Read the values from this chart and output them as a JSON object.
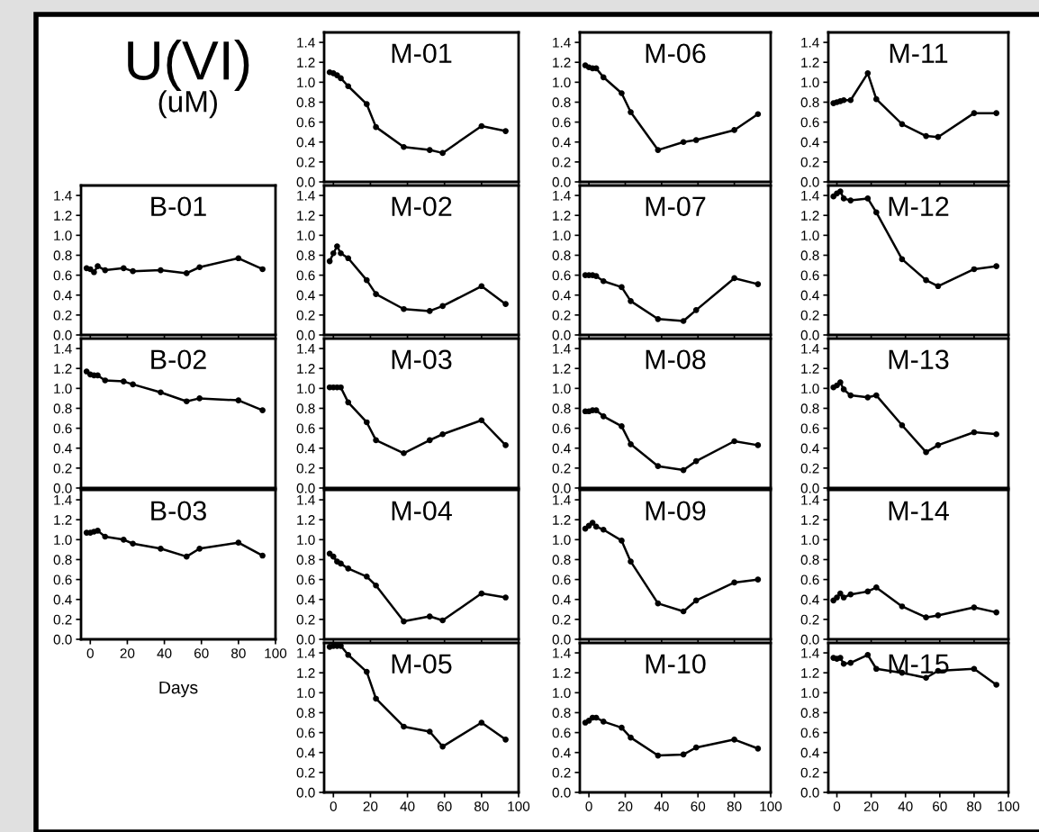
{
  "chart_data": [
    {
      "type": "other",
      "annotations": [
        "U(VI)",
        "(uM)"
      ]
    },
    {
      "type": "line",
      "title": "M-01",
      "x": [
        -2,
        0,
        2,
        4,
        8,
        18,
        23,
        38,
        52,
        59,
        80,
        93
      ],
      "values": [
        1.1,
        1.09,
        1.07,
        1.04,
        0.96,
        0.78,
        0.55,
        0.35,
        0.32,
        0.29,
        0.56,
        0.51
      ],
      "color": "#000000",
      "marker": "circle",
      "xlim": [
        -5,
        100
      ],
      "ylim": [
        0,
        1.5
      ],
      "xticks": [
        0,
        20,
        40,
        60,
        80,
        100
      ],
      "yticks": [
        {
          "value": 0,
          "label": "0.0"
        },
        {
          "value": 0.2,
          "label": "0.2"
        },
        {
          "value": 0.4,
          "label": "0.4"
        },
        {
          "value": 0.6,
          "label": "0.6"
        },
        {
          "value": 0.8,
          "label": "0.8"
        },
        {
          "value": 1,
          "label": "1.0"
        },
        {
          "value": 1.2,
          "label": "1.2"
        },
        {
          "value": 1.4,
          "label": "1.4"
        }
      ],
      "tick_labels": "y"
    },
    {
      "type": "line",
      "title": "M-06",
      "x": [
        -2,
        0,
        2,
        4,
        8,
        18,
        23,
        38,
        52,
        59,
        80,
        93
      ],
      "values": [
        1.17,
        1.15,
        1.14,
        1.14,
        1.05,
        0.89,
        0.7,
        0.32,
        0.4,
        0.42,
        0.52,
        0.68
      ],
      "color": "#000000",
      "marker": "circle",
      "xlim": [
        -5,
        100
      ],
      "ylim": [
        0,
        1.5
      ],
      "xticks": [
        0,
        20,
        40,
        60,
        80,
        100
      ],
      "yticks": [
        {
          "value": 0,
          "label": "0.0"
        },
        {
          "value": 0.2,
          "label": "0.2"
        },
        {
          "value": 0.4,
          "label": "0.4"
        },
        {
          "value": 0.6,
          "label": "0.6"
        },
        {
          "value": 0.8,
          "label": "0.8"
        },
        {
          "value": 1,
          "label": "1.0"
        },
        {
          "value": 1.2,
          "label": "1.2"
        },
        {
          "value": 1.4,
          "label": "1.4"
        }
      ],
      "tick_labels": "y"
    },
    {
      "type": "line",
      "title": "M-11",
      "x": [
        -2,
        0,
        2,
        4,
        8,
        18,
        23,
        38,
        52,
        59,
        80,
        93
      ],
      "values": [
        0.79,
        0.8,
        0.81,
        0.82,
        0.82,
        1.09,
        0.83,
        0.58,
        0.46,
        0.45,
        0.69,
        0.69
      ],
      "color": "#000000",
      "marker": "circle",
      "xlim": [
        -5,
        100
      ],
      "ylim": [
        0,
        1.5
      ],
      "xticks": [
        0,
        20,
        40,
        60,
        80,
        100
      ],
      "yticks": [
        {
          "value": 0,
          "label": "0.0"
        },
        {
          "value": 0.2,
          "label": "0.2"
        },
        {
          "value": 0.4,
          "label": "0.4"
        },
        {
          "value": 0.6,
          "label": "0.6"
        },
        {
          "value": 0.8,
          "label": "0.8"
        },
        {
          "value": 1,
          "label": "1.0"
        },
        {
          "value": 1.2,
          "label": "1.2"
        },
        {
          "value": 1.4,
          "label": "1.4"
        }
      ],
      "tick_labels": "y"
    },
    {
      "type": "line",
      "title": "B-01",
      "x": [
        -2,
        0,
        2,
        4,
        8,
        18,
        23,
        38,
        52,
        59,
        80,
        93
      ],
      "values": [
        0.67,
        0.66,
        0.63,
        0.69,
        0.65,
        0.67,
        0.64,
        0.65,
        0.62,
        0.68,
        0.77,
        0.66
      ],
      "color": "#000000",
      "marker": "circle",
      "xlim": [
        -5,
        100
      ],
      "ylim": [
        0,
        1.5
      ],
      "xticks": [
        0,
        20,
        40,
        60,
        80,
        100
      ],
      "yticks": [
        {
          "value": 0,
          "label": "0.0"
        },
        {
          "value": 0.2,
          "label": "0.2"
        },
        {
          "value": 0.4,
          "label": "0.4"
        },
        {
          "value": 0.6,
          "label": "0.6"
        },
        {
          "value": 0.8,
          "label": "0.8"
        },
        {
          "value": 1,
          "label": "1.0"
        },
        {
          "value": 1.2,
          "label": "1.2"
        },
        {
          "value": 1.4,
          "label": "1.4"
        }
      ],
      "tick_labels": "y"
    },
    {
      "type": "line",
      "title": "M-02",
      "x": [
        -2,
        0,
        2,
        4,
        8,
        18,
        23,
        38,
        52,
        59,
        80,
        93
      ],
      "values": [
        0.74,
        0.82,
        0.89,
        0.82,
        0.77,
        0.55,
        0.41,
        0.26,
        0.24,
        0.29,
        0.49,
        0.31
      ],
      "color": "#000000",
      "marker": "circle",
      "xlim": [
        -5,
        100
      ],
      "ylim": [
        0,
        1.5
      ],
      "xticks": [
        0,
        20,
        40,
        60,
        80,
        100
      ],
      "yticks": [
        {
          "value": 0,
          "label": "0.0"
        },
        {
          "value": 0.2,
          "label": "0.2"
        },
        {
          "value": 0.4,
          "label": "0.4"
        },
        {
          "value": 0.6,
          "label": "0.6"
        },
        {
          "value": 0.8,
          "label": "0.8"
        },
        {
          "value": 1,
          "label": "1.0"
        },
        {
          "value": 1.2,
          "label": "1.2"
        },
        {
          "value": 1.4,
          "label": "1.4"
        }
      ],
      "tick_labels": "y"
    },
    {
      "type": "line",
      "title": "M-07",
      "x": [
        -2,
        0,
        2,
        4,
        8,
        18,
        23,
        38,
        52,
        59,
        80,
        93
      ],
      "values": [
        0.6,
        0.6,
        0.6,
        0.59,
        0.54,
        0.48,
        0.34,
        0.16,
        0.14,
        0.25,
        0.57,
        0.51
      ],
      "color": "#000000",
      "marker": "circle",
      "xlim": [
        -5,
        100
      ],
      "ylim": [
        0,
        1.5
      ],
      "xticks": [
        0,
        20,
        40,
        60,
        80,
        100
      ],
      "yticks": [
        {
          "value": 0,
          "label": "0.0"
        },
        {
          "value": 0.2,
          "label": "0.2"
        },
        {
          "value": 0.4,
          "label": "0.4"
        },
        {
          "value": 0.6,
          "label": "0.6"
        },
        {
          "value": 0.8,
          "label": "0.8"
        },
        {
          "value": 1,
          "label": "1.0"
        },
        {
          "value": 1.2,
          "label": "1.2"
        },
        {
          "value": 1.4,
          "label": "1.4"
        }
      ],
      "tick_labels": "y"
    },
    {
      "type": "line",
      "title": "M-12",
      "x": [
        -2,
        0,
        2,
        4,
        8,
        18,
        23,
        38,
        52,
        59,
        80,
        93
      ],
      "values": [
        1.39,
        1.42,
        1.44,
        1.37,
        1.35,
        1.37,
        1.23,
        0.76,
        0.55,
        0.49,
        0.66,
        0.69
      ],
      "color": "#000000",
      "marker": "circle",
      "xlim": [
        -5,
        100
      ],
      "ylim": [
        0,
        1.5
      ],
      "xticks": [
        0,
        20,
        40,
        60,
        80,
        100
      ],
      "yticks": [
        {
          "value": 0,
          "label": "0.0"
        },
        {
          "value": 0.2,
          "label": "0.2"
        },
        {
          "value": 0.4,
          "label": "0.4"
        },
        {
          "value": 0.6,
          "label": "0.6"
        },
        {
          "value": 0.8,
          "label": "0.8"
        },
        {
          "value": 1,
          "label": "1.0"
        },
        {
          "value": 1.2,
          "label": "1.2"
        },
        {
          "value": 1.4,
          "label": "1.4"
        }
      ],
      "tick_labels": "y"
    },
    {
      "type": "line",
      "title": "B-02",
      "x": [
        -2,
        0,
        2,
        4,
        8,
        18,
        23,
        38,
        52,
        59,
        80,
        93
      ],
      "values": [
        1.17,
        1.14,
        1.13,
        1.13,
        1.08,
        1.07,
        1.04,
        0.96,
        0.87,
        0.9,
        0.88,
        0.78
      ],
      "color": "#000000",
      "marker": "circle",
      "xlim": [
        -5,
        100
      ],
      "ylim": [
        0,
        1.5
      ],
      "xticks": [
        0,
        20,
        40,
        60,
        80,
        100
      ],
      "yticks": [
        {
          "value": 0,
          "label": "0.0"
        },
        {
          "value": 0.2,
          "label": "0.2"
        },
        {
          "value": 0.4,
          "label": "0.4"
        },
        {
          "value": 0.6,
          "label": "0.6"
        },
        {
          "value": 0.8,
          "label": "0.8"
        },
        {
          "value": 1,
          "label": "1.0"
        },
        {
          "value": 1.2,
          "label": "1.2"
        },
        {
          "value": 1.4,
          "label": "1.4"
        }
      ],
      "tick_labels": "y"
    },
    {
      "type": "line",
      "title": "M-03",
      "x": [
        -2,
        0,
        2,
        4,
        8,
        18,
        23,
        38,
        52,
        59,
        80,
        93
      ],
      "values": [
        1.01,
        1.01,
        1.01,
        1.01,
        0.86,
        0.66,
        0.48,
        0.35,
        0.48,
        0.54,
        0.68,
        0.43
      ],
      "color": "#000000",
      "marker": "circle",
      "xlim": [
        -5,
        100
      ],
      "ylim": [
        0,
        1.5
      ],
      "xticks": [
        0,
        20,
        40,
        60,
        80,
        100
      ],
      "yticks": [
        {
          "value": 0,
          "label": "0.0"
        },
        {
          "value": 0.2,
          "label": "0.2"
        },
        {
          "value": 0.4,
          "label": "0.4"
        },
        {
          "value": 0.6,
          "label": "0.6"
        },
        {
          "value": 0.8,
          "label": "0.8"
        },
        {
          "value": 1,
          "label": "1.0"
        },
        {
          "value": 1.2,
          "label": "1.2"
        },
        {
          "value": 1.4,
          "label": "1.4"
        }
      ],
      "tick_labels": "y"
    },
    {
      "type": "line",
      "title": "M-08",
      "x": [
        -2,
        0,
        2,
        4,
        8,
        18,
        23,
        38,
        52,
        59,
        80,
        93
      ],
      "values": [
        0.77,
        0.77,
        0.78,
        0.78,
        0.72,
        0.62,
        0.44,
        0.22,
        0.18,
        0.27,
        0.47,
        0.43
      ],
      "color": "#000000",
      "marker": "circle",
      "xlim": [
        -5,
        100
      ],
      "ylim": [
        0,
        1.5
      ],
      "xticks": [
        0,
        20,
        40,
        60,
        80,
        100
      ],
      "yticks": [
        {
          "value": 0,
          "label": "0.0"
        },
        {
          "value": 0.2,
          "label": "0.2"
        },
        {
          "value": 0.4,
          "label": "0.4"
        },
        {
          "value": 0.6,
          "label": "0.6"
        },
        {
          "value": 0.8,
          "label": "0.8"
        },
        {
          "value": 1,
          "label": "1.0"
        },
        {
          "value": 1.2,
          "label": "1.2"
        },
        {
          "value": 1.4,
          "label": "1.4"
        }
      ],
      "tick_labels": "y"
    },
    {
      "type": "line",
      "title": "M-13",
      "x": [
        -2,
        0,
        2,
        4,
        8,
        18,
        23,
        38,
        52,
        59,
        80,
        93
      ],
      "values": [
        1.01,
        1.03,
        1.06,
        0.99,
        0.93,
        0.91,
        0.93,
        0.63,
        0.36,
        0.43,
        0.56,
        0.54
      ],
      "color": "#000000",
      "marker": "circle",
      "xlim": [
        -5,
        100
      ],
      "ylim": [
        0,
        1.5
      ],
      "xticks": [
        0,
        20,
        40,
        60,
        80,
        100
      ],
      "yticks": [
        {
          "value": 0,
          "label": "0.0"
        },
        {
          "value": 0.2,
          "label": "0.2"
        },
        {
          "value": 0.4,
          "label": "0.4"
        },
        {
          "value": 0.6,
          "label": "0.6"
        },
        {
          "value": 0.8,
          "label": "0.8"
        },
        {
          "value": 1,
          "label": "1.0"
        },
        {
          "value": 1.2,
          "label": "1.2"
        },
        {
          "value": 1.4,
          "label": "1.4"
        }
      ],
      "tick_labels": "y"
    },
    {
      "type": "line",
      "title": "B-03",
      "xlabel": "Days",
      "x": [
        -2,
        0,
        2,
        4,
        8,
        18,
        23,
        38,
        52,
        59,
        80,
        93
      ],
      "values": [
        1.07,
        1.07,
        1.08,
        1.09,
        1.03,
        1.0,
        0.96,
        0.91,
        0.83,
        0.91,
        0.97,
        0.84
      ],
      "color": "#000000",
      "marker": "circle",
      "xlim": [
        -5,
        100
      ],
      "ylim": [
        0,
        1.5
      ],
      "xticks": [
        0,
        20,
        40,
        60,
        80,
        100
      ],
      "yticks": [
        {
          "value": 0,
          "label": "0.0"
        },
        {
          "value": 0.2,
          "label": "0.2"
        },
        {
          "value": 0.4,
          "label": "0.4"
        },
        {
          "value": 0.6,
          "label": "0.6"
        },
        {
          "value": 0.8,
          "label": "0.8"
        },
        {
          "value": 1,
          "label": "1.0"
        },
        {
          "value": 1.2,
          "label": "1.2"
        },
        {
          "value": 1.4,
          "label": "1.4"
        }
      ]
    },
    {
      "type": "line",
      "title": "M-04",
      "x": [
        -2,
        0,
        2,
        4,
        8,
        18,
        23,
        38,
        52,
        59,
        80,
        93
      ],
      "values": [
        0.86,
        0.83,
        0.78,
        0.76,
        0.71,
        0.63,
        0.54,
        0.18,
        0.23,
        0.19,
        0.46,
        0.42
      ],
      "color": "#000000",
      "marker": "circle",
      "xlim": [
        -5,
        100
      ],
      "ylim": [
        0,
        1.5
      ],
      "xticks": [
        0,
        20,
        40,
        60,
        80,
        100
      ],
      "yticks": [
        {
          "value": 0,
          "label": "0.0"
        },
        {
          "value": 0.2,
          "label": "0.2"
        },
        {
          "value": 0.4,
          "label": "0.4"
        },
        {
          "value": 0.6,
          "label": "0.6"
        },
        {
          "value": 0.8,
          "label": "0.8"
        },
        {
          "value": 1,
          "label": "1.0"
        },
        {
          "value": 1.2,
          "label": "1.2"
        },
        {
          "value": 1.4,
          "label": "1.4"
        }
      ],
      "tick_labels": "y"
    },
    {
      "type": "line",
      "title": "M-09",
      "x": [
        -2,
        0,
        2,
        4,
        8,
        18,
        23,
        38,
        52,
        59,
        80,
        93
      ],
      "values": [
        1.11,
        1.14,
        1.17,
        1.13,
        1.1,
        0.99,
        0.78,
        0.36,
        0.28,
        0.39,
        0.57,
        0.6
      ],
      "color": "#000000",
      "marker": "circle",
      "xlim": [
        -5,
        100
      ],
      "ylim": [
        0,
        1.5
      ],
      "xticks": [
        0,
        20,
        40,
        60,
        80,
        100
      ],
      "yticks": [
        {
          "value": 0,
          "label": "0.0"
        },
        {
          "value": 0.2,
          "label": "0.2"
        },
        {
          "value": 0.4,
          "label": "0.4"
        },
        {
          "value": 0.6,
          "label": "0.6"
        },
        {
          "value": 0.8,
          "label": "0.8"
        },
        {
          "value": 1,
          "label": "1.0"
        },
        {
          "value": 1.2,
          "label": "1.2"
        },
        {
          "value": 1.4,
          "label": "1.4"
        }
      ],
      "tick_labels": "y"
    },
    {
      "type": "line",
      "title": "M-14",
      "x": [
        -2,
        0,
        2,
        4,
        8,
        18,
        23,
        38,
        52,
        59,
        80,
        93
      ],
      "values": [
        0.39,
        0.42,
        0.46,
        0.42,
        0.45,
        0.48,
        0.52,
        0.33,
        0.22,
        0.24,
        0.32,
        0.27
      ],
      "color": "#000000",
      "marker": "circle",
      "xlim": [
        -5,
        100
      ],
      "ylim": [
        0,
        1.5
      ],
      "xticks": [
        0,
        20,
        40,
        60,
        80,
        100
      ],
      "yticks": [
        {
          "value": 0,
          "label": "0.0"
        },
        {
          "value": 0.2,
          "label": "0.2"
        },
        {
          "value": 0.4,
          "label": "0.4"
        },
        {
          "value": 0.6,
          "label": "0.6"
        },
        {
          "value": 0.8,
          "label": "0.8"
        },
        {
          "value": 1,
          "label": "1.0"
        },
        {
          "value": 1.2,
          "label": "1.2"
        },
        {
          "value": 1.4,
          "label": "1.4"
        }
      ],
      "tick_labels": "y"
    },
    {
      "type": "line",
      "title": "M-05",
      "x": [
        -2,
        0,
        2,
        4,
        8,
        18,
        23,
        38,
        52,
        59,
        80,
        93
      ],
      "values": [
        1.46,
        1.47,
        1.47,
        1.47,
        1.38,
        1.21,
        0.94,
        0.66,
        0.61,
        0.46,
        0.7,
        0.53
      ],
      "color": "#000000",
      "marker": "circle",
      "xlim": [
        -5,
        100
      ],
      "ylim": [
        0,
        1.5
      ],
      "xticks": [
        0,
        20,
        40,
        60,
        80,
        100
      ],
      "yticks": [
        {
          "value": 0,
          "label": "0.0"
        },
        {
          "value": 0.2,
          "label": "0.2"
        },
        {
          "value": 0.4,
          "label": "0.4"
        },
        {
          "value": 0.6,
          "label": "0.6"
        },
        {
          "value": 0.8,
          "label": "0.8"
        },
        {
          "value": 1,
          "label": "1.0"
        },
        {
          "value": 1.2,
          "label": "1.2"
        },
        {
          "value": 1.4,
          "label": "1.4"
        }
      ]
    },
    {
      "type": "line",
      "title": "M-10",
      "x": [
        -2,
        0,
        2,
        4,
        8,
        18,
        23,
        38,
        52,
        59,
        80,
        93
      ],
      "values": [
        0.7,
        0.72,
        0.75,
        0.75,
        0.71,
        0.65,
        0.55,
        0.37,
        0.38,
        0.45,
        0.53,
        0.44
      ],
      "color": "#000000",
      "marker": "circle",
      "xlim": [
        -5,
        100
      ],
      "ylim": [
        0,
        1.5
      ],
      "xticks": [
        0,
        20,
        40,
        60,
        80,
        100
      ],
      "yticks": [
        {
          "value": 0,
          "label": "0.0"
        },
        {
          "value": 0.2,
          "label": "0.2"
        },
        {
          "value": 0.4,
          "label": "0.4"
        },
        {
          "value": 0.6,
          "label": "0.6"
        },
        {
          "value": 0.8,
          "label": "0.8"
        },
        {
          "value": 1,
          "label": "1.0"
        },
        {
          "value": 1.2,
          "label": "1.2"
        },
        {
          "value": 1.4,
          "label": "1.4"
        }
      ]
    },
    {
      "type": "line",
      "title": "M-15",
      "x": [
        -2,
        0,
        2,
        4,
        8,
        18,
        23,
        38,
        52,
        59,
        80,
        93
      ],
      "values": [
        1.35,
        1.34,
        1.35,
        1.29,
        1.3,
        1.38,
        1.24,
        1.2,
        1.15,
        1.22,
        1.24,
        1.08
      ],
      "color": "#000000",
      "marker": "circle",
      "xlim": [
        -5,
        100
      ],
      "ylim": [
        0,
        1.5
      ],
      "xticks": [
        0,
        20,
        40,
        60,
        80,
        100
      ],
      "yticks": [
        {
          "value": 0,
          "label": "0.0"
        },
        {
          "value": 0.2,
          "label": "0.2"
        },
        {
          "value": 0.4,
          "label": "0.4"
        },
        {
          "value": 0.6,
          "label": "0.6"
        },
        {
          "value": 0.8,
          "label": "0.8"
        },
        {
          "value": 1,
          "label": "1.0"
        },
        {
          "value": 1.2,
          "label": "1.2"
        },
        {
          "value": 1.4,
          "label": "1.4"
        }
      ]
    }
  ]
}
